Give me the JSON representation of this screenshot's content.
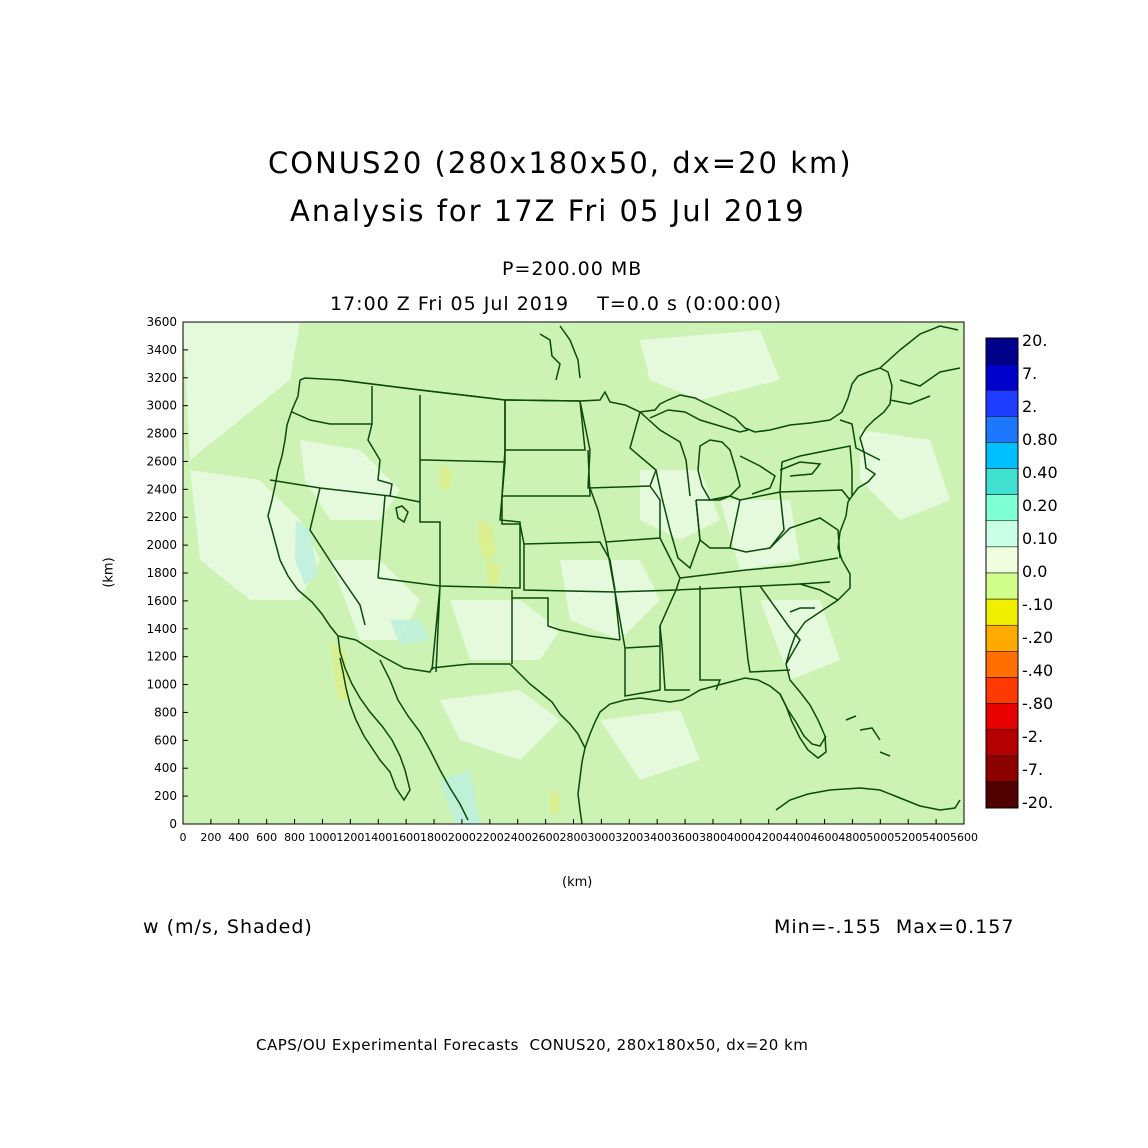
{
  "header": {
    "title_line1": "CONUS20 (280x180x50, dx=20 km)",
    "title_line2": "Analysis for 17Z Fri 05 Jul 2019",
    "level": "P=200.00 MB",
    "valid_time": "17:00 Z Fri 05 Jul 2019    T=0.0 s (0:00:00)"
  },
  "axes": {
    "x_label": "(km)",
    "y_label": "(km)",
    "x_ticks": [
      "0",
      "200",
      "400",
      "600",
      "800",
      "1000",
      "1200",
      "1400",
      "1600",
      "1800",
      "2000",
      "2200",
      "2400",
      "2600",
      "2800",
      "3000",
      "3200",
      "3400",
      "3600",
      "3800",
      "4000",
      "4200",
      "4400",
      "4600",
      "4800",
      "5000",
      "5200",
      "5400",
      "5600"
    ],
    "y_ticks": [
      "0",
      "200",
      "400",
      "600",
      "800",
      "1000",
      "1200",
      "1400",
      "1600",
      "1800",
      "2000",
      "2200",
      "2400",
      "2600",
      "2800",
      "3000",
      "3200",
      "3400",
      "3600"
    ],
    "x_range": [
      0,
      5600
    ],
    "y_range": [
      0,
      3600
    ]
  },
  "colorbar": {
    "labels": [
      "20.",
      "7.",
      "2.",
      "0.80",
      "0.40",
      "0.20",
      "0.10",
      "0.0",
      "-.10",
      "-.20",
      "-.40",
      "-.80",
      "-2.",
      "-7.",
      "-20."
    ],
    "colors": [
      "#00008b",
      "#0000cd",
      "#1e3cff",
      "#1e78ff",
      "#00bfff",
      "#40e0d0",
      "#7fffd4",
      "#c8ffe6",
      "#f0ffe0",
      "#d2ff8c",
      "#f0f000",
      "#ffaa00",
      "#ff7000",
      "#ff3a00",
      "#e60000",
      "#b40000",
      "#8c0000",
      "#500000"
    ]
  },
  "field": {
    "variable": "w (m/s, Shaded)",
    "stats": "Min=-.155  Max=0.157",
    "map_background": "#ccf2b4",
    "light_patch": "#e8fae0",
    "cyan_patch": "#bff0dc",
    "yellow_patch": "#dcf08c",
    "boundary_color": "#0a4a0a"
  },
  "footer": {
    "credit": "CAPS/OU Experimental Forecasts  CONUS20, 280x180x50, dx=20 km"
  }
}
